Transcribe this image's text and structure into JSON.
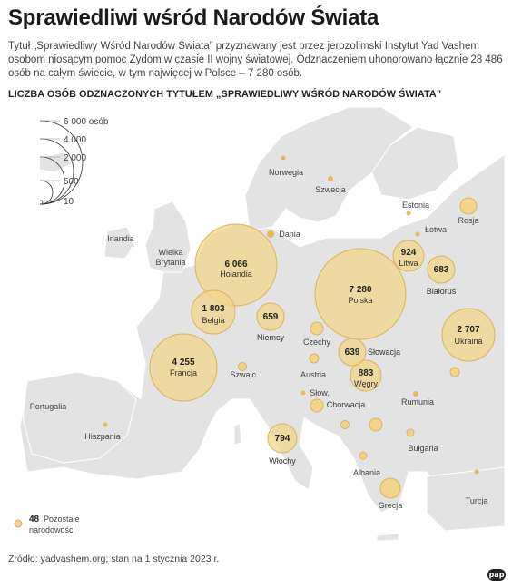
{
  "title": "Sprawiedliwi wśród Narodów Świata",
  "intro": "Tytuł „Sprawiedliwy Wśród Narodów Świata” przyznawany jest przez jerozolimski Instytut Yad Vashem osobom niosącym pomoc Żydom w czasie II wojny światowej. Odznaczeniem uhonorowano łącznie 28 486 osób na całym świecie, w tym najwięcej w Polsce – 7 280 osób.",
  "subheading": "LICZBA OSÓB ODZNACZONYCH TYTUŁEM „SPRAWIEDLIWY WŚRÓD NARODÓW ŚWIATA”",
  "legend": {
    "scale": [
      "6 000 osób",
      "4 000",
      "2 000",
      "500",
      "10"
    ],
    "others_value": "48",
    "others_label_line1": "Pozostałe",
    "others_label_line2": "narodowości"
  },
  "colors": {
    "bubble": "#f2d58a",
    "bubble_stroke": "#d9b45a",
    "small_dot": "#e8b95a",
    "land": "#e4e4e4",
    "sea": "#ffffff"
  },
  "chart_data": {
    "type": "proportional-symbol-map",
    "total": 28486,
    "labeled_countries": [
      {
        "name": "Holandia",
        "value": "6 066"
      },
      {
        "name": "Polska",
        "value": "7 280"
      },
      {
        "name": "Francja",
        "value": "4 255"
      },
      {
        "name": "Ukraina",
        "value": "2 707"
      },
      {
        "name": "Belgia",
        "value": "1 803"
      },
      {
        "name": "Litwa",
        "value": "924"
      },
      {
        "name": "Węgry",
        "value": "883"
      },
      {
        "name": "Włochy",
        "value": "794"
      },
      {
        "name": "Białoruś",
        "value": "683"
      },
      {
        "name": "Niemcy",
        "value": "659"
      },
      {
        "name": "Słowacja",
        "value": "639"
      }
    ]
  },
  "country_names": [
    "Norwegia",
    "Szwecja",
    "Estonia",
    "Rosja",
    "Łotwa",
    "Irlandia",
    "Wielka",
    "Brytania",
    "Dania",
    "Czechy",
    "Austria",
    "Szwajc.",
    "Słow.",
    "Chorwacja",
    "Rumunia",
    "Portugalia",
    "Hiszpania",
    "Bułgaria",
    "Albania",
    "Grecja",
    "Turcja"
  ],
  "source": "Źródło: yadvashem.org; stan na 1 stycznia 2023 r.",
  "logo": "pap"
}
